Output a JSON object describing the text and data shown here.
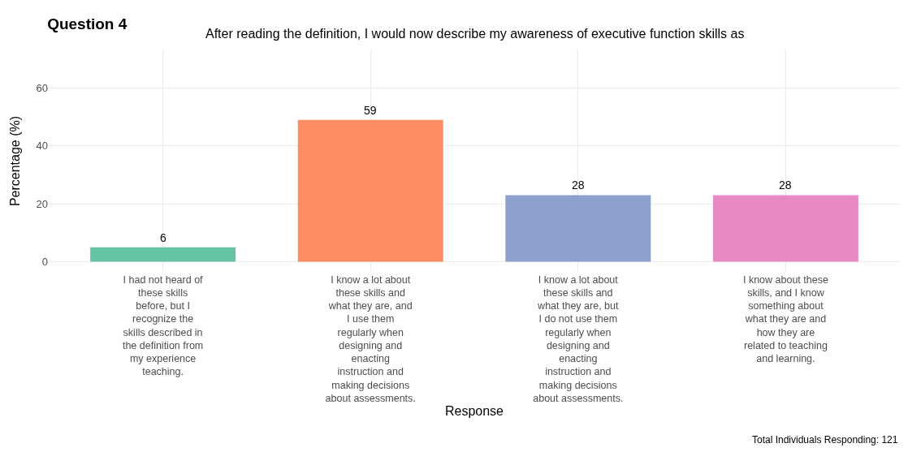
{
  "chart_data": {
    "type": "bar",
    "title": "Question 4",
    "subtitle": "After reading the definition, I would now describe my awareness of executive function skills as",
    "xlabel": "Response",
    "ylabel": "Percentage (%)",
    "categories": [
      "I had not heard of\nthese skills\nbefore, but I\nrecognize the\nskills described in\nthe definition from\nmy experience\nteaching.",
      "I know a lot about\nthese skills and\nwhat they are, and\nI use them\nregularly when\ndesigning and\nenacting\ninstruction and\nmaking decisions\nabout assessments.",
      "I know a lot about\nthese skills and\nwhat they are, but\nI do not use them\nregularly when\ndesigning and\nenacting\ninstruction and\nmaking decisions\nabout assessments.",
      "I know about these\nskills, and I know\nsomething about\nwhat they are and\nhow they are\nrelated to teaching\nand learning."
    ],
    "values": [
      5,
      49,
      23,
      23
    ],
    "colors": [
      "#66c2a5",
      "#fc8d62",
      "#8da0cb",
      "#e78ac3"
    ],
    "ylim": [
      -3.5,
      73
    ],
    "yticks": [
      0,
      20,
      40,
      60
    ],
    "grid": true,
    "legend": false,
    "annotations": [
      {
        "text": "6",
        "x": "I had not heard of\nthese skills\nbefore, but I\nrecognize the\nskills described in\nthe definition from\nmy experience\nteaching.",
        "y": 5
      },
      {
        "text": "59",
        "x": "I know a lot about\nthese skills and\nwhat they are, and\nI use them\nregularly when\ndesigning and\nenacting\ninstruction and\nmaking decisions\nabout assessments.",
        "y": 49
      },
      {
        "text": "28",
        "x": "I know a lot about\nthese skills and\nwhat they are, but\nI do not use them\nregularly when\ndesigning and\nenacting\ninstruction and\nmaking decisions\nabout assessments.",
        "y": 23
      },
      {
        "text": "28",
        "x": "I know about these\nskills, and I know\nsomething about\nwhat they are and\nhow they are\nrelated to teaching\nand learning.",
        "y": 23
      },
      "Total Individuals Responding: 121"
    ]
  }
}
